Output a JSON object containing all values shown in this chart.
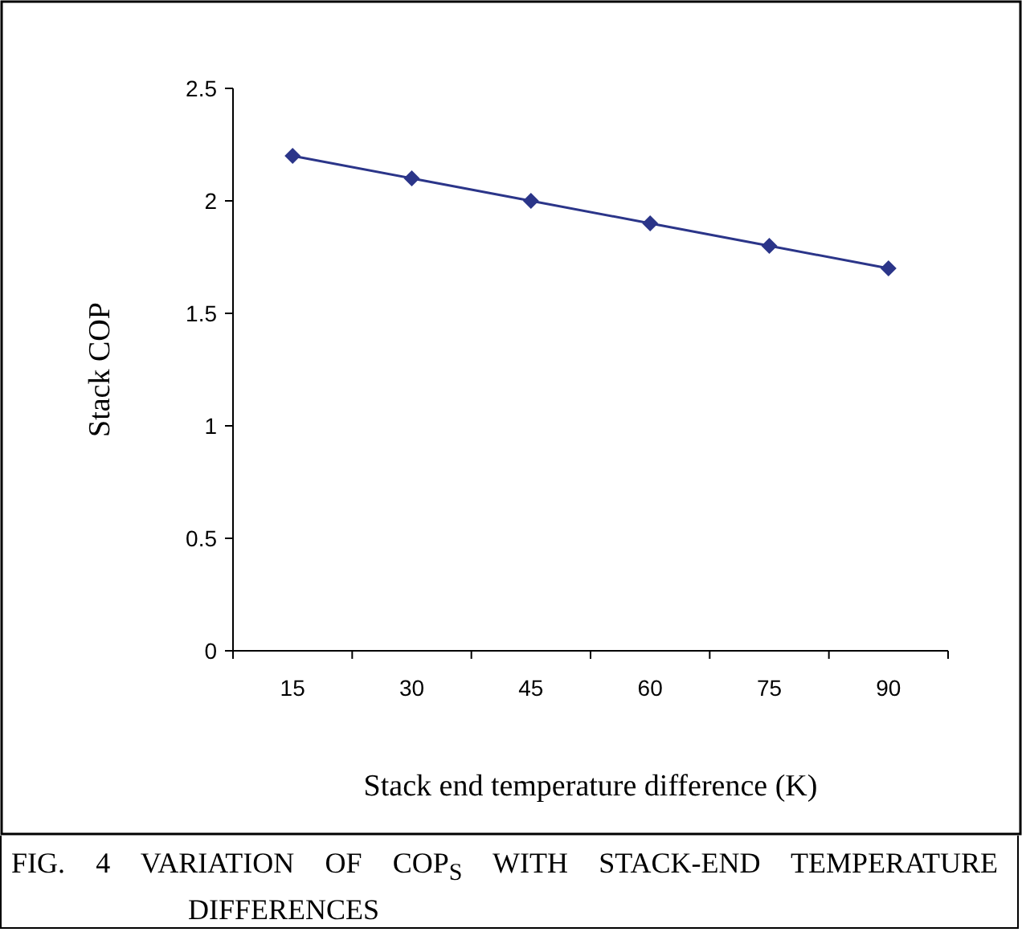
{
  "chart_data": {
    "type": "line",
    "xlabel": "Stack end temperature difference (K)",
    "ylabel": "Stack COP",
    "categories": [
      "15",
      "30",
      "45",
      "60",
      "75",
      "90"
    ],
    "series": [
      {
        "color": "#2b3589",
        "values": [
          2.2,
          2.1,
          2.0,
          1.9,
          1.8,
          1.7
        ]
      }
    ],
    "ylim": [
      0,
      2.5
    ],
    "yticks": [
      0,
      {
        "value": 0.5,
        "label": "0.5"
      },
      1,
      {
        "value": 1.5,
        "label": "1.5"
      },
      2,
      {
        "value": 2.5,
        "label": "2.5"
      }
    ],
    "marker": "diamond",
    "line_style": "solid",
    "annotations": [
      "FIG. 4 VARIATION OF COP$_{S}$ WITH STACK-END TEMPERATURE DIFFERENCES"
    ]
  }
}
